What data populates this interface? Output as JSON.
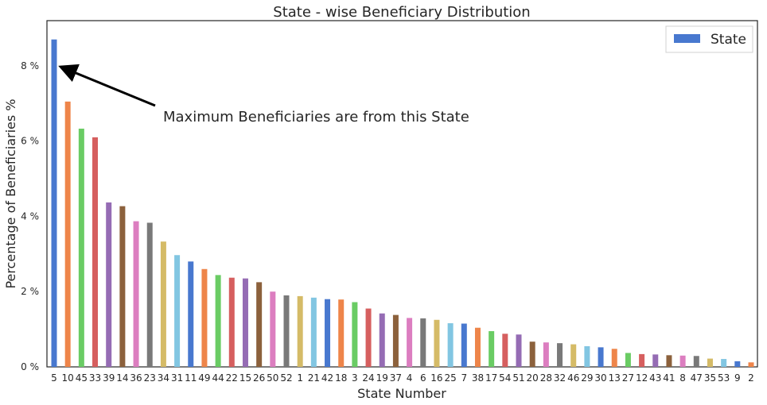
{
  "chart_data": {
    "type": "bar",
    "title": "State - wise Beneficiary Distribution",
    "xlabel": "State Number",
    "ylabel": "Percentage of Beneficiaries %",
    "ylim": [
      0,
      9.2
    ],
    "yticks": [
      0,
      2,
      4,
      6,
      8
    ],
    "ytick_labels": [
      "0 %",
      "2 %",
      "4 %",
      "6 %",
      "8 %"
    ],
    "grid": false,
    "legend": {
      "position": "top-right",
      "entries": [
        "State"
      ]
    },
    "categories": [
      "5",
      "10",
      "45",
      "33",
      "39",
      "14",
      "36",
      "23",
      "34",
      "31",
      "11",
      "49",
      "44",
      "22",
      "15",
      "26",
      "50",
      "52",
      "1",
      "21",
      "42",
      "18",
      "3",
      "24",
      "19",
      "37",
      "4",
      "6",
      "16",
      "25",
      "7",
      "38",
      "17",
      "54",
      "51",
      "20",
      "28",
      "32",
      "46",
      "29",
      "30",
      "13",
      "27",
      "12",
      "43",
      "41",
      "8",
      "47",
      "35",
      "53",
      "9",
      "2"
    ],
    "series": [
      {
        "name": "State",
        "values": [
          8.7,
          7.05,
          6.33,
          6.1,
          4.37,
          4.27,
          3.87,
          3.83,
          3.33,
          2.97,
          2.8,
          2.6,
          2.44,
          2.37,
          2.35,
          2.25,
          2.0,
          1.9,
          1.88,
          1.84,
          1.8,
          1.79,
          1.72,
          1.55,
          1.42,
          1.38,
          1.3,
          1.29,
          1.25,
          1.16,
          1.15,
          1.04,
          0.95,
          0.88,
          0.86,
          0.67,
          0.65,
          0.63,
          0.6,
          0.55,
          0.52,
          0.48,
          0.37,
          0.34,
          0.33,
          0.31,
          0.3,
          0.29,
          0.22,
          0.21,
          0.15,
          0.12
        ]
      }
    ],
    "bar_colors": [
      "#4878cf",
      "#ee854a",
      "#6acc64",
      "#d65f5f",
      "#956cb4",
      "#8c613c",
      "#dc7ec0",
      "#797979",
      "#d5bb67",
      "#82c6e2"
    ],
    "annotations": [
      {
        "text": "Maximum Beneficiaries are from this State",
        "points_to_category": "5",
        "points_to_value": 7.9
      }
    ]
  }
}
